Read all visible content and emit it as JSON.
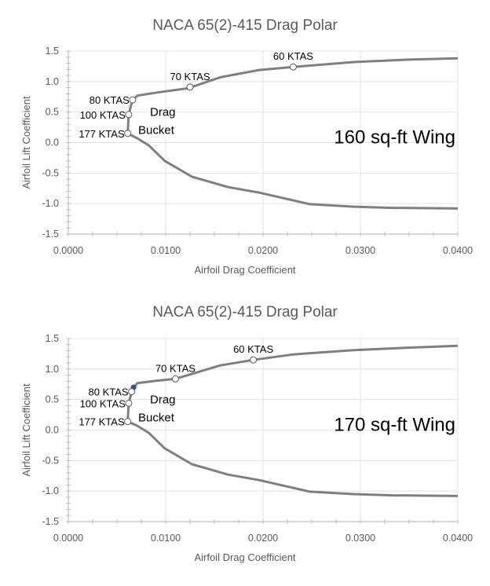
{
  "chart_data": [
    {
      "type": "scatter-line",
      "title": "NACA 65(2)-415 Drag Polar",
      "xlabel": "Airfoil Drag Coefficient",
      "ylabel": "Airfoil Lift Coefficient",
      "xlim": [
        0,
        0.04
      ],
      "ylim": [
        -1.5,
        1.5
      ],
      "xticks": [
        "0.0000",
        "0.0100",
        "0.0200",
        "0.0300",
        "0.0400"
      ],
      "yticks": [
        "-1.5",
        "-1.0",
        "-0.5",
        "0.0",
        "0.5",
        "1.0",
        "1.5"
      ],
      "grid": true,
      "line_color": "#7f7f7f",
      "curve": {
        "x": [
          0.04,
          0.0349,
          0.0293,
          0.0231,
          0.0196,
          0.0156,
          0.0123,
          0.0091,
          0.0071,
          0.0066,
          0.0062,
          0.0061,
          0.0071,
          0.0083,
          0.0099,
          0.0127,
          0.0164,
          0.0196,
          0.0248,
          0.0293,
          0.0333,
          0.04
        ],
        "y": [
          1.38,
          1.36,
          1.32,
          1.24,
          1.19,
          1.07,
          0.89,
          0.82,
          0.77,
          0.7,
          0.46,
          0.15,
          0.07,
          -0.05,
          -0.3,
          -0.56,
          -0.73,
          -0.82,
          -1.01,
          -1.05,
          -1.07,
          -1.08
        ]
      },
      "markers": [
        {
          "label": "60 KTAS",
          "x": 0.0231,
          "y": 1.24
        },
        {
          "label": "70 KTAS",
          "x": 0.0125,
          "y": 0.91
        },
        {
          "label": "80 KTAS",
          "x": 0.0066,
          "y": 0.7
        },
        {
          "label": "100 KTAS",
          "x": 0.0062,
          "y": 0.46
        },
        {
          "label": "177 KTAS",
          "x": 0.0061,
          "y": 0.15
        }
      ],
      "annotations": {
        "bucket_line1": "Drag",
        "bucket_line2": "Bucket",
        "wing": "160 sq-ft Wing"
      }
    },
    {
      "type": "scatter-line",
      "title": "NACA 65(2)-415 Drag Polar",
      "xlabel": "Airfoil Drag Coefficient",
      "ylabel": "Airfoil Lift Coefficient",
      "xlim": [
        0,
        0.04
      ],
      "ylim": [
        -1.5,
        1.5
      ],
      "xticks": [
        "0.0000",
        "0.0100",
        "0.0200",
        "0.0300",
        "0.0400"
      ],
      "yticks": [
        "-1.5",
        "-1.0",
        "-0.5",
        "0.0",
        "0.5",
        "1.0",
        "1.5"
      ],
      "grid": true,
      "line_color": "#7f7f7f",
      "highlight_color": "#2f5597",
      "highlight_point": {
        "x": 0.0067,
        "y": 0.7
      },
      "curve": {
        "x": [
          0.04,
          0.0349,
          0.0293,
          0.0231,
          0.019,
          0.0156,
          0.011,
          0.0091,
          0.0071,
          0.0066,
          0.0062,
          0.0061,
          0.0071,
          0.0083,
          0.0099,
          0.0127,
          0.0164,
          0.0196,
          0.0248,
          0.0293,
          0.0333,
          0.04
        ],
        "y": [
          1.38,
          1.35,
          1.31,
          1.24,
          1.15,
          1.06,
          0.84,
          0.81,
          0.77,
          0.68,
          0.44,
          0.14,
          0.07,
          -0.05,
          -0.3,
          -0.56,
          -0.73,
          -0.82,
          -1.01,
          -1.05,
          -1.07,
          -1.08
        ]
      },
      "markers": [
        {
          "label": "60 KTAS",
          "x": 0.019,
          "y": 1.15
        },
        {
          "label": "70 KTAS",
          "x": 0.011,
          "y": 0.84
        },
        {
          "label": "80 KTAS",
          "x": 0.0065,
          "y": 0.63
        },
        {
          "label": "100 KTAS",
          "x": 0.0062,
          "y": 0.44
        },
        {
          "label": "177 KTAS",
          "x": 0.0061,
          "y": 0.14
        }
      ],
      "annotations": {
        "bucket_line1": "Drag",
        "bucket_line2": "Bucket",
        "wing": "170 sq-ft Wing"
      }
    }
  ]
}
